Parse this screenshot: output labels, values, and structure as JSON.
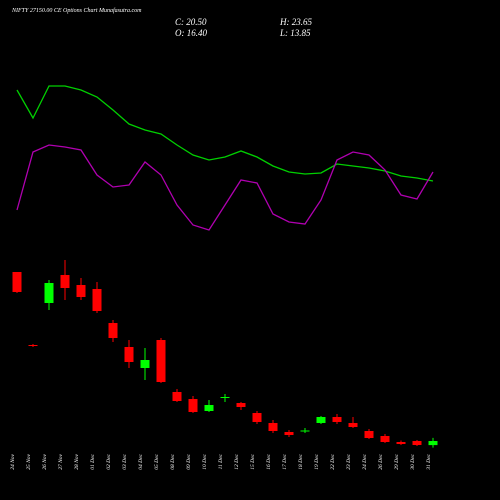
{
  "chart_data": {
    "type": "candlestick",
    "title": "NIFTY 27150.00 CE Options Chart Munafasutra.com",
    "ohlc_text": {
      "close": "C: 20.50",
      "high": "H: 23.65",
      "open": "O: 16.40",
      "low": "L: 13.85"
    },
    "categories": [
      "24 Nov",
      "25 Nov",
      "26 Nov",
      "27 Nov",
      "28 Nov",
      "01 Dec",
      "02 Dec",
      "03 Dec",
      "04 Dec",
      "05 Dec",
      "08 Dec",
      "09 Dec",
      "10 Dec",
      "11 Dec",
      "12 Dec",
      "15 Dec",
      "16 Dec",
      "17 Dec",
      "18 Dec",
      "19 Dec",
      "22 Dec",
      "23 Dec",
      "24 Dec",
      "26 Dec",
      "29 Dec",
      "30 Dec",
      "31 Dec"
    ],
    "open": [
      189.5,
      116.5,
      158.5,
      186.5,
      176.5,
      172.5,
      138.5,
      114.5,
      93.5,
      121.5,
      69.5,
      62.5,
      50.5,
      63.5,
      58.5,
      48.5,
      38.5,
      29.5,
      30.5,
      38.5,
      44.5,
      38.5,
      30.5,
      25.5,
      19.5,
      20.5,
      16.4
    ],
    "high": [
      189.5,
      117.5,
      181.5,
      201.5,
      183.5,
      179.5,
      141.5,
      121.5,
      113.5,
      123.5,
      72.5,
      65.5,
      61.5,
      67.5,
      59.5,
      50.5,
      41.5,
      31.5,
      33.5,
      45.5,
      47.5,
      44.5,
      32.5,
      27.5,
      21,
      21.5,
      23.65
    ],
    "low": [
      168.5,
      114.5,
      151.5,
      161.5,
      161.5,
      148.5,
      119.5,
      93.5,
      81.5,
      78.5,
      59.5,
      48.5,
      49.5,
      59.5,
      51.5,
      37.5,
      28.5,
      24.5,
      28.5,
      37.5,
      37.5,
      33.5,
      22.5,
      18.5,
      16.5,
      15.5,
      13.85
    ],
    "close": [
      169.5,
      116,
      178.5,
      173.5,
      164.5,
      150.5,
      123.5,
      99.5,
      101.5,
      79.5,
      60.5,
      49.5,
      56.5,
      64.5,
      54.5,
      39.5,
      30.5,
      26.5,
      31,
      44.5,
      39.5,
      34.5,
      23.5,
      19.5,
      17.5,
      16.5,
      20.5
    ],
    "ylim": [
      0,
      210
    ],
    "up_color": "#00ff00",
    "down_color": "#ff0000",
    "indicators": {
      "ylim": [
        0,
        100
      ],
      "series": [
        {
          "color": "#00d000",
          "values": [
            80,
            66,
            82,
            82,
            80,
            76.5,
            70,
            63,
            60,
            58,
            52.5,
            47.5,
            45,
            46.5,
            49.5,
            46.5,
            42,
            39,
            38,
            38.5,
            43,
            42,
            41,
            39.5,
            37,
            36,
            34.5
          ]
        },
        {
          "color": "#b000b0",
          "values": [
            20,
            49,
            52.5,
            51.5,
            50,
            37.5,
            31.5,
            32.5,
            44,
            37.5,
            22.5,
            12.5,
            10,
            22.5,
            35,
            33.5,
            18,
            14,
            13,
            25,
            45,
            49,
            47.5,
            40,
            27.5,
            25.5,
            39
          ]
        }
      ]
    }
  }
}
